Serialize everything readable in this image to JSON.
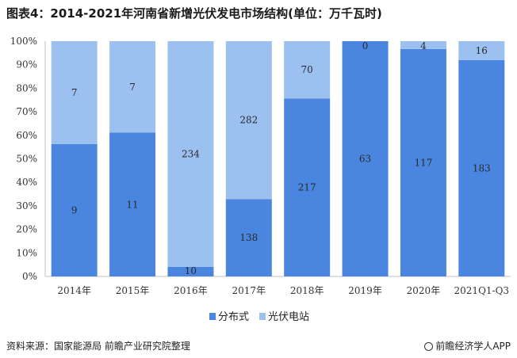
{
  "title": "图表4：2014-2021年河南省新增光伏发电市场结构(单位：万千瓦时)",
  "source": "资料来源：国家能源局 前瞻产业研究院整理",
  "brand": "前瞻经济学人APP",
  "colors": {
    "distributed": "#4a86e0",
    "station": "#9cc0f0"
  },
  "chart_data": {
    "type": "bar",
    "stacked": "percent",
    "title": "图表4：2014-2021年河南省新增光伏发电市场结构(单位：万千瓦时)",
    "categories": [
      "2014年",
      "2015年",
      "2016年",
      "2017年",
      "2018年",
      "2019年",
      "2020年",
      "2021Q1-Q3"
    ],
    "series": [
      {
        "name": "分布式",
        "values": [
          9,
          11,
          10,
          138,
          217,
          63,
          117,
          183
        ]
      },
      {
        "name": "光伏电站",
        "values": [
          7,
          7,
          234,
          282,
          70,
          0,
          4,
          16
        ]
      }
    ],
    "yticks": [
      "0%",
      "10%",
      "20%",
      "30%",
      "40%",
      "50%",
      "60%",
      "70%",
      "80%",
      "90%",
      "100%"
    ],
    "ylim": [
      0,
      100
    ],
    "legend_position": "bottom",
    "grid": false
  }
}
